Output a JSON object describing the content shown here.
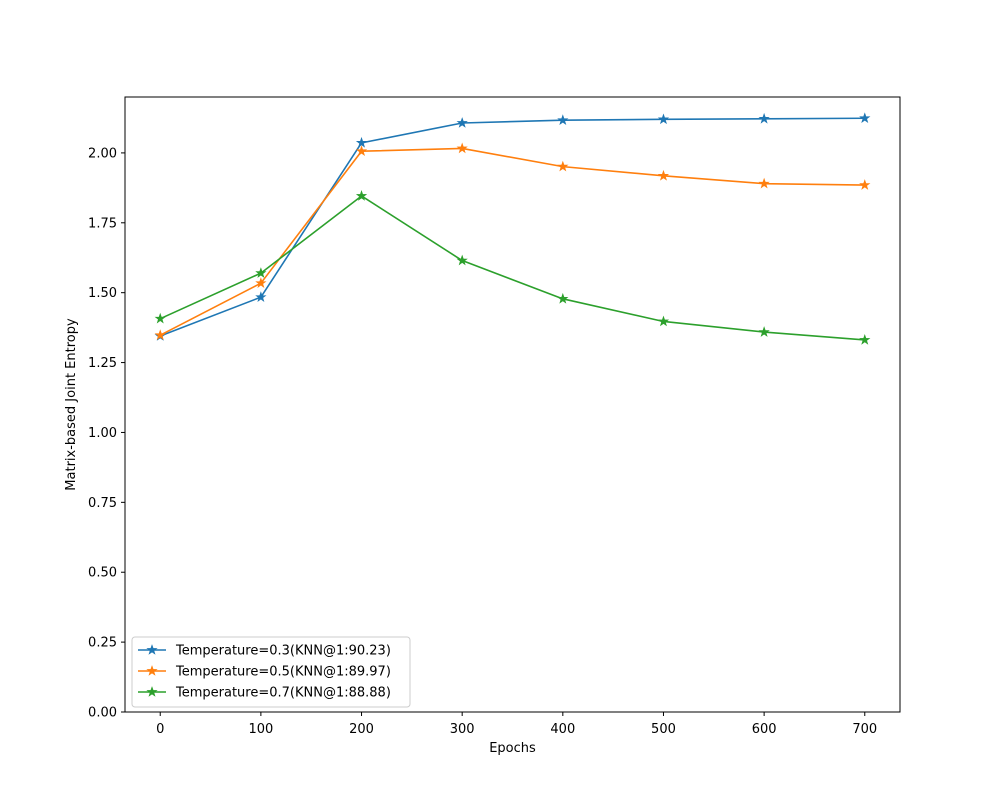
{
  "chart_data": {
    "type": "line",
    "title": "",
    "xlabel": "Epochs",
    "ylabel": "Matrix-based Joint Entropy",
    "x": [
      0,
      100,
      200,
      300,
      400,
      500,
      600,
      700
    ],
    "xlim": [
      -35,
      735
    ],
    "ylim": [
      0,
      2.2
    ],
    "xticks": [
      0,
      100,
      200,
      300,
      400,
      500,
      600,
      700
    ],
    "yticks": [
      0.0,
      0.25,
      0.5,
      0.75,
      1.0,
      1.25,
      1.5,
      1.75,
      2.0
    ],
    "ytick_labels": [
      "0.00",
      "0.25",
      "0.50",
      "0.75",
      "1.00",
      "1.25",
      "1.50",
      "1.75",
      "2.00"
    ],
    "marker": "star",
    "grid": false,
    "legend_position": "lower-left",
    "series": [
      {
        "name": "Temperature=0.3(KNN@1:90.23)",
        "color": "#1f77b4",
        "values": [
          1.345,
          1.484,
          2.036,
          2.107,
          2.117,
          2.12,
          2.122,
          2.124
        ]
      },
      {
        "name": "Temperature=0.5(KNN@1:89.97)",
        "color": "#ff7f0e",
        "values": [
          1.348,
          1.534,
          2.006,
          2.016,
          1.951,
          1.918,
          1.89,
          1.885
        ]
      },
      {
        "name": "Temperature=0.7(KNN@1:88.88)",
        "color": "#2ca02c",
        "values": [
          1.407,
          1.57,
          1.846,
          1.615,
          1.478,
          1.397,
          1.359,
          1.331
        ]
      }
    ]
  }
}
